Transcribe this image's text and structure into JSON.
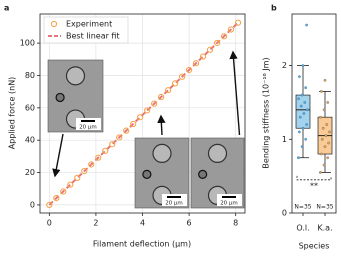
{
  "chart_data": [
    {
      "type": "scatter",
      "panel_label": "a",
      "xlabel": "Filament deflection (μm)",
      "ylabel": "Applied force (nN)",
      "xlim": [
        -0.4,
        8.4
      ],
      "ylim": [
        -5,
        118
      ],
      "xticks": [
        0,
        2,
        4,
        6,
        8
      ],
      "yticks": [
        0,
        20,
        40,
        60,
        80,
        100
      ],
      "grid": true,
      "legend": "upper left",
      "x": [
        0,
        0.3,
        0.6,
        0.9,
        1.2,
        1.5,
        1.8,
        2.1,
        2.4,
        2.7,
        3.0,
        3.3,
        3.6,
        3.9,
        4.2,
        4.5,
        4.8,
        5.1,
        5.4,
        5.7,
        6.0,
        6.3,
        6.6,
        6.9,
        7.2,
        7.5,
        7.8,
        8.1
      ],
      "series": [
        {
          "name": "Experiment",
          "color": "#f5a040",
          "values": [
            0,
            4.2,
            8.3,
            12.5,
            16.7,
            20.9,
            25.0,
            29.2,
            33.4,
            37.5,
            41.7,
            45.9,
            50.0,
            54.2,
            58.4,
            62.6,
            66.7,
            70.9,
            75.1,
            79.2,
            83.4,
            87.6,
            91.7,
            95.9,
            100.1,
            104.2,
            108.4,
            112.6
          ]
        },
        {
          "name": "Best linear fit",
          "color": "#e8747c",
          "x": [
            0,
            8.1
          ],
          "values": [
            0,
            112.6
          ]
        }
      ],
      "insets": [
        {
          "scale_label": "20 μm"
        },
        {
          "scale_label": "20 μm"
        },
        {
          "scale_label": "20 μm"
        }
      ]
    },
    {
      "type": "box",
      "panel_label": "b",
      "xlabel": "Species",
      "ylabel": "Bending stiffness (10⁻¹⁶ Jm)",
      "ylim": [
        0,
        2.7
      ],
      "yticks": [
        0,
        1,
        2
      ],
      "categories": [
        "O.l.",
        "K.a."
      ],
      "significance": "**",
      "groups": [
        {
          "color": "#5aaee0",
          "n_label": "N=35",
          "whislo": 0.75,
          "q1": 1.15,
          "med": 1.4,
          "q3": 1.6,
          "whishi": 2.0,
          "points": [
            0.75,
            0.9,
            1.0,
            1.1,
            1.15,
            1.2,
            1.3,
            1.35,
            1.4,
            1.45,
            1.5,
            1.55,
            1.6,
            1.7,
            1.85,
            2.0,
            2.55
          ]
        },
        {
          "color": "#f5a040",
          "n_label": "N=35",
          "whislo": 0.55,
          "q1": 0.8,
          "med": 1.05,
          "q3": 1.3,
          "whishi": 1.65,
          "points": [
            0.55,
            0.65,
            0.75,
            0.8,
            0.9,
            0.95,
            1.0,
            1.05,
            1.1,
            1.15,
            1.2,
            1.3,
            1.4,
            1.5,
            1.65,
            1.8
          ]
        }
      ]
    }
  ]
}
